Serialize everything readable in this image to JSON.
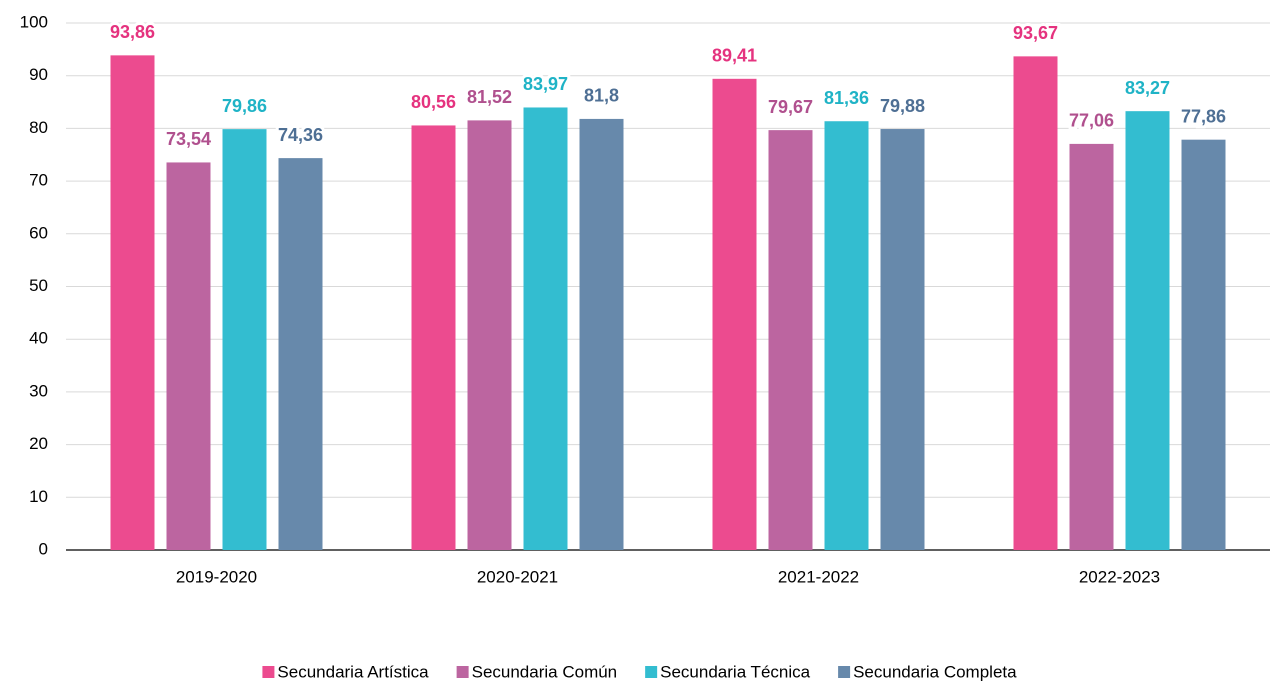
{
  "chart_data": {
    "type": "bar",
    "categories": [
      "2019-2020",
      "2020-2021",
      "2021-2022",
      "2022-2023"
    ],
    "series": [
      {
        "name": "Secundaria Artística",
        "color": "#ec4b8f",
        "label_color": "#e5337f",
        "values": [
          93.86,
          80.56,
          89.41,
          93.67
        ],
        "value_labels": [
          "93,86",
          "80,56",
          "89,41",
          "93,67"
        ]
      },
      {
        "name": "Secundaria Común",
        "color": "#bc65a0",
        "label_color": "#b0508e",
        "values": [
          73.54,
          81.52,
          79.67,
          77.06
        ],
        "value_labels": [
          "73,54",
          "81,52",
          "79,67",
          "77,06"
        ]
      },
      {
        "name": "Secundaria Técnica",
        "color": "#33bdd0",
        "label_color": "#1fb3c6",
        "values": [
          79.86,
          83.97,
          81.36,
          83.27
        ],
        "value_labels": [
          "79,86",
          "83,97",
          "81,36",
          "83,27"
        ]
      },
      {
        "name": "Secundaria Completa",
        "color": "#6789ab",
        "label_color": "#4e6f94",
        "values": [
          74.36,
          81.8,
          79.88,
          77.86
        ],
        "value_labels": [
          "74,36",
          "81,8",
          "79,88",
          "77,86"
        ]
      }
    ],
    "ylim": [
      0,
      100
    ],
    "yticks": [
      0,
      10,
      20,
      30,
      40,
      50,
      60,
      70,
      80,
      90,
      100
    ],
    "grid": true,
    "legend": "bottom"
  }
}
